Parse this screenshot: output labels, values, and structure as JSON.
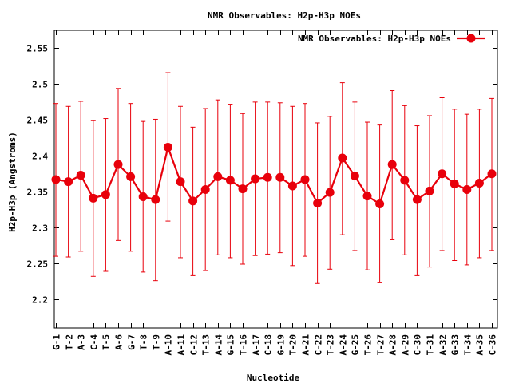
{
  "chart_data": {
    "type": "line",
    "title": "NMR Observables: H2p-H3p NOEs",
    "xlabel": "Nucleotide",
    "ylabel": "H2p-H3p (Angstroms)",
    "ylim": [
      2.16,
      2.575
    ],
    "yticks": [
      2.2,
      2.25,
      2.3,
      2.35,
      2.4,
      2.45,
      2.5,
      2.55
    ],
    "ytick_labels": [
      "2.2",
      "2.25",
      "2.3",
      "2.35",
      "2.4",
      "2.45",
      "2.5",
      "2.55"
    ],
    "grid": false,
    "legend": "top-right",
    "color": "#e8000b",
    "categories": [
      "G-1",
      "T-2",
      "A-3",
      "C-4",
      "T-5",
      "A-6",
      "G-7",
      "T-8",
      "T-9",
      "A-10",
      "A-11",
      "C-12",
      "T-13",
      "A-14",
      "G-15",
      "T-16",
      "A-17",
      "C-18",
      "G-19",
      "T-20",
      "A-21",
      "C-22",
      "T-23",
      "A-24",
      "G-25",
      "T-26",
      "T-27",
      "A-28",
      "A-29",
      "C-30",
      "T-31",
      "A-32",
      "G-33",
      "T-34",
      "A-35",
      "C-36"
    ],
    "series": [
      {
        "name": "NMR Observables: H2p-H3p NOEs",
        "segments": [
          [
            0,
            17
          ],
          [
            18,
            35
          ]
        ],
        "values": [
          2.367,
          2.364,
          2.373,
          2.341,
          2.346,
          2.388,
          2.371,
          2.343,
          2.339,
          2.412,
          2.364,
          2.337,
          2.353,
          2.371,
          2.366,
          2.354,
          2.368,
          2.37,
          2.37,
          2.358,
          2.367,
          2.334,
          2.349,
          2.397,
          2.372,
          2.344,
          2.333,
          2.388,
          2.366,
          2.339,
          2.351,
          2.375,
          2.361,
          2.353,
          2.362,
          2.375
        ],
        "err_low": [
          2.26,
          2.259,
          2.267,
          2.232,
          2.239,
          2.282,
          2.267,
          2.238,
          2.226,
          2.309,
          2.258,
          2.233,
          2.24,
          2.262,
          2.258,
          2.249,
          2.261,
          2.263,
          2.265,
          2.247,
          2.26,
          2.222,
          2.242,
          2.29,
          2.268,
          2.241,
          2.223,
          2.283,
          2.262,
          2.233,
          2.245,
          2.268,
          2.254,
          2.248,
          2.258,
          2.268
        ],
        "err_high": [
          2.473,
          2.469,
          2.476,
          2.449,
          2.452,
          2.494,
          2.473,
          2.448,
          2.451,
          2.516,
          2.469,
          2.44,
          2.466,
          2.478,
          2.472,
          2.459,
          2.475,
          2.475,
          2.474,
          2.469,
          2.473,
          2.446,
          2.455,
          2.502,
          2.475,
          2.447,
          2.443,
          2.491,
          2.47,
          2.442,
          2.456,
          2.481,
          2.465,
          2.458,
          2.465,
          2.48
        ]
      }
    ]
  }
}
